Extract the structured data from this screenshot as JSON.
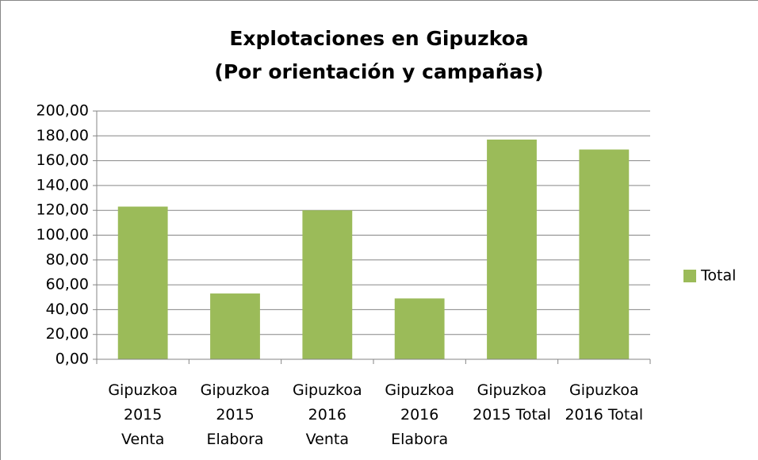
{
  "chart_data": {
    "type": "bar",
    "title": "Explotaciones en Gipuzkoa",
    "subtitle": "(Por orientación y campañas)",
    "categories": [
      "Gipuzkoa\n2015\nVenta",
      "Gipuzkoa\n2015\nElabora",
      "Gipuzkoa\n2016\nVenta",
      "Gipuzkoa\n2016\nElabora",
      "Gipuzkoa\n2015 Total",
      "Gipuzkoa\n2016 Total"
    ],
    "series": [
      {
        "name": "Total",
        "color": "#9bbb59",
        "values": [
          123,
          53,
          120,
          49,
          177,
          169
        ]
      }
    ],
    "ylim": [
      0,
      200
    ],
    "yticks": [
      {
        "value": 0,
        "label": "0,00"
      },
      {
        "value": 20,
        "label": "20,00"
      },
      {
        "value": 40,
        "label": "40,00"
      },
      {
        "value": 60,
        "label": "60,00"
      },
      {
        "value": 80,
        "label": "80,00"
      },
      {
        "value": 100,
        "label": "100,00"
      },
      {
        "value": 120,
        "label": "120,00"
      },
      {
        "value": 140,
        "label": "140,00"
      },
      {
        "value": 160,
        "label": "160,00"
      },
      {
        "value": 180,
        "label": "180,00"
      },
      {
        "value": 200,
        "label": "200,00"
      }
    ],
    "grid": true,
    "legend": "right"
  }
}
